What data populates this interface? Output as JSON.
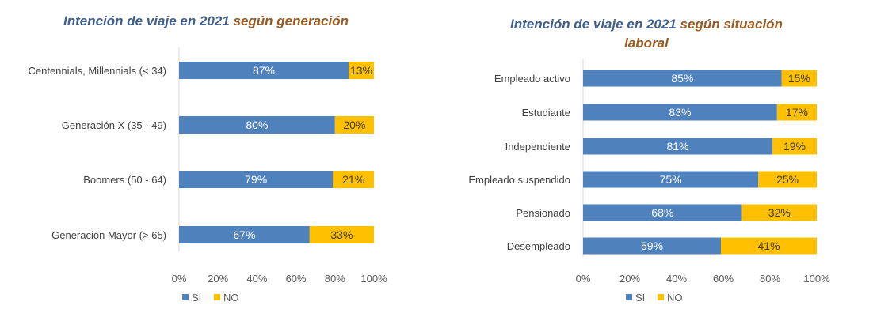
{
  "colors": {
    "si": "#4f81bd",
    "no": "#ffc000",
    "title_main": "#3e5f8e",
    "title_accent": "#9a5a1f"
  },
  "chart_data": [
    {
      "type": "bar",
      "orientation": "horizontal",
      "stacked": true,
      "title_main": "Intención de viaje en 2021",
      "title_accent": "según generación",
      "categories": [
        "Centennials, Millennials (< 34)",
        "Generación X (35 - 49)",
        "Boomers (50 - 64)",
        "Generación Mayor (> 65)"
      ],
      "series": [
        {
          "name": "SI",
          "values": [
            87,
            80,
            79,
            67
          ]
        },
        {
          "name": "NO",
          "values": [
            13,
            20,
            21,
            33
          ]
        }
      ],
      "xticks": [
        "0%",
        "20%",
        "40%",
        "60%",
        "80%",
        "100%"
      ],
      "xlim": [
        0,
        100
      ],
      "legend": "bottom-left"
    },
    {
      "type": "bar",
      "orientation": "horizontal",
      "stacked": true,
      "title_main": "Intención de viaje en 2021",
      "title_accent": "según situación",
      "title_accent2": "laboral",
      "categories": [
        "Empleado activo",
        "Estudiante",
        "Independiente",
        "Empleado suspendido",
        "Pensionado",
        "Desempleado"
      ],
      "series": [
        {
          "name": "SI",
          "values": [
            85,
            83,
            81,
            75,
            68,
            59
          ]
        },
        {
          "name": "NO",
          "values": [
            15,
            17,
            19,
            25,
            32,
            41
          ]
        }
      ],
      "xticks": [
        "0%",
        "20%",
        "40%",
        "60%",
        "80%",
        "100%"
      ],
      "xlim": [
        0,
        100
      ],
      "legend": "bottom-left"
    }
  ]
}
